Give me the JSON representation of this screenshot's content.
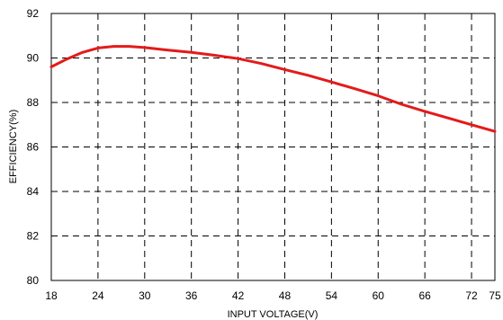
{
  "chart_data": {
    "type": "line",
    "xlabel": "INPUT VOLTAGE(V)",
    "ylabel": "EFFICIENCY(%)",
    "xlim": [
      18,
      75
    ],
    "ylim": [
      80,
      92
    ],
    "x_ticks": [
      18,
      24,
      30,
      36,
      42,
      48,
      54,
      60,
      66,
      72,
      75
    ],
    "y_ticks": [
      80,
      82,
      84,
      86,
      88,
      90,
      92
    ],
    "x_tick_labels": [
      "18",
      "24",
      "30",
      "36",
      "42",
      "48",
      "54",
      "60",
      "66",
      "72",
      "75"
    ],
    "y_tick_labels": [
      "80",
      "82",
      "84",
      "86",
      "88",
      "90",
      "92"
    ],
    "grid": true,
    "series": [
      {
        "x": [
          18,
          20,
          22,
          24,
          26,
          28,
          30,
          33,
          36,
          39,
          42,
          45,
          48,
          51,
          54,
          57,
          60,
          63,
          66,
          69,
          72,
          75
        ],
        "y": [
          89.6,
          89.95,
          90.25,
          90.45,
          90.52,
          90.52,
          90.47,
          90.35,
          90.25,
          90.12,
          89.97,
          89.75,
          89.48,
          89.22,
          88.92,
          88.62,
          88.3,
          87.92,
          87.6,
          87.3,
          87.0,
          86.7
        ],
        "color": "#e41a1a"
      }
    ]
  }
}
